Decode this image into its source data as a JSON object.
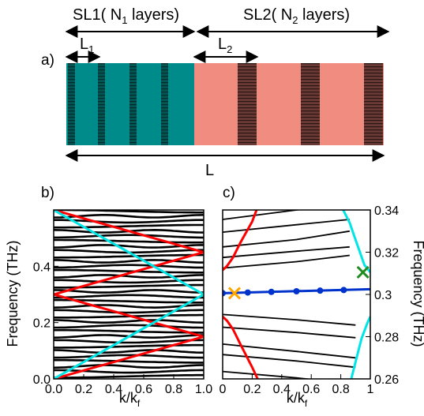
{
  "figure": {
    "panel_a": {
      "label": "a)",
      "sl1_label": "SL1( N",
      "sl1_sub": "1",
      "sl1_tail": " layers)",
      "sl2_label": "SL2( N",
      "sl2_sub": "2",
      "sl2_tail": " layers)",
      "l1_label": "L",
      "l1_sub": "1",
      "l2_label": "L",
      "l2_sub": "2",
      "total_label": "L",
      "colors": {
        "sl1": "#008b8b",
        "sl2": "#f08c80",
        "barrier": "#3a3a3a"
      }
    },
    "panel_b": {
      "label": "b)",
      "ylabel": "Frequency (THz)",
      "xlabel_main": "k/k",
      "xlabel_sub": "f"
    },
    "panel_c": {
      "label": "c)",
      "ylabel": "Frequency (THz)",
      "xlabel_main": "k/k",
      "xlabel_sub": "f"
    }
  },
  "chart_data": [
    {
      "type": "line",
      "panel": "b",
      "xlim": [
        0,
        1.0
      ],
      "ylim": [
        0,
        0.6
      ],
      "xticks": [
        "0.0",
        "0.2",
        "0.4",
        "0.6",
        "0.8",
        "1.0"
      ],
      "yticks": [
        "0.0",
        "0.2",
        "0.4"
      ],
      "series": [
        {
          "color": "#ff0000",
          "lines": [
            [
              [
                0,
                0.0
              ],
              [
                1,
                0.15
              ]
            ],
            [
              [
                0,
                0.3
              ],
              [
                1,
                0.15
              ]
            ],
            [
              [
                0,
                0.3
              ],
              [
                1,
                0.45
              ]
            ],
            [
              [
                0,
                0.6
              ],
              [
                1,
                0.45
              ]
            ]
          ]
        },
        {
          "color": "#00e5e5",
          "lines": [
            [
              [
                0,
                0.0
              ],
              [
                1,
                0.3
              ]
            ],
            [
              [
                0,
                0.6
              ],
              [
                1,
                0.3
              ]
            ]
          ]
        }
      ],
      "black_band_count": 36
    },
    {
      "type": "line",
      "panel": "c",
      "xlim": [
        0,
        1
      ],
      "ylim": [
        0.26,
        0.34
      ],
      "xticks": [
        "0",
        "0.2",
        "0.4",
        "0.6",
        "0.8",
        "1"
      ],
      "yticks": [
        "0.26",
        "0.28",
        "0.3",
        "0.32",
        "0.34"
      ],
      "blue_flat_band": {
        "color": "#0033cc",
        "x": [
          0.0,
          1.0
        ],
        "y": [
          0.3006,
          0.3025
        ]
      },
      "blue_points": [
        {
          "x": 0.0,
          "y": 0.3006
        },
        {
          "x": 0.17,
          "y": 0.3009
        },
        {
          "x": 0.33,
          "y": 0.3012
        },
        {
          "x": 0.5,
          "y": 0.3015
        },
        {
          "x": 0.66,
          "y": 0.3018
        },
        {
          "x": 0.82,
          "y": 0.3021
        }
      ],
      "markers": [
        {
          "shape": "x",
          "color": "#ffa500",
          "x": 0.08,
          "y": 0.3006
        },
        {
          "shape": "x",
          "color": "#228b22",
          "x": 0.95,
          "y": 0.3105
        }
      ]
    }
  ]
}
